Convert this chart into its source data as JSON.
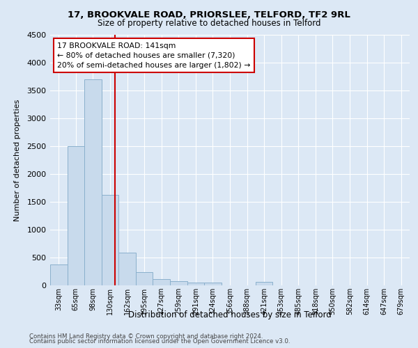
{
  "title1": "17, BROOKVALE ROAD, PRIORSLEE, TELFORD, TF2 9RL",
  "title2": "Size of property relative to detached houses in Telford",
  "xlabel": "Distribution of detached houses by size in Telford",
  "ylabel": "Number of detached properties",
  "footer1": "Contains HM Land Registry data © Crown copyright and database right 2024.",
  "footer2": "Contains public sector information licensed under the Open Government Licence v3.0.",
  "bar_labels": [
    "33sqm",
    "65sqm",
    "98sqm",
    "130sqm",
    "162sqm",
    "195sqm",
    "227sqm",
    "259sqm",
    "291sqm",
    "324sqm",
    "356sqm",
    "388sqm",
    "421sqm",
    "453sqm",
    "485sqm",
    "518sqm",
    "550sqm",
    "582sqm",
    "614sqm",
    "647sqm",
    "679sqm"
  ],
  "bar_values": [
    380,
    2500,
    3700,
    1620,
    590,
    240,
    110,
    70,
    55,
    45,
    0,
    0,
    60,
    0,
    0,
    0,
    0,
    0,
    0,
    0,
    0
  ],
  "bar_color": "#c8daec",
  "bar_edge_color": "#8ab0cc",
  "annotation_box_text1": "17 BROOKVALE ROAD: 141sqm",
  "annotation_box_text2": "← 80% of detached houses are smaller (7,320)",
  "annotation_box_text3": "20% of semi-detached houses are larger (1,802) →",
  "vline_color": "#cc0000",
  "vline_x_index": 3.28,
  "ylim": [
    0,
    4500
  ],
  "yticks": [
    0,
    500,
    1000,
    1500,
    2000,
    2500,
    3000,
    3500,
    4000,
    4500
  ],
  "bg_color": "#dce8f5",
  "grid_color": "#ffffff",
  "annotation_box_color": "#ffffff",
  "annotation_box_edge_color": "#cc0000"
}
